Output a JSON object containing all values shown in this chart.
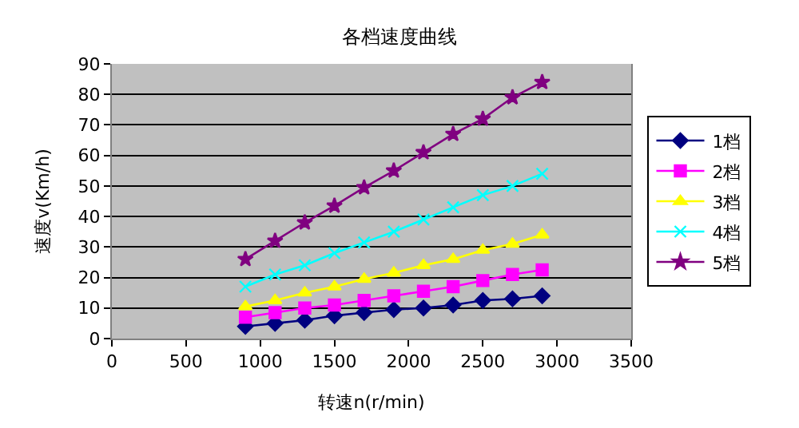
{
  "chart_data": {
    "type": "line",
    "title": "各档速度曲线",
    "xlabel": "转速n(r/min)",
    "ylabel": "速度v(Km/h)",
    "x": [
      900,
      1100,
      1300,
      1500,
      1700,
      1900,
      2100,
      2300,
      2500,
      2700,
      2900
    ],
    "xlim": [
      0,
      3500
    ],
    "xticks": [
      0,
      500,
      1000,
      1500,
      2000,
      2500,
      3000,
      3500
    ],
    "ylim": [
      0,
      90
    ],
    "yticks": [
      0,
      10,
      20,
      30,
      40,
      50,
      60,
      70,
      80,
      90
    ],
    "grid": "y",
    "legend": "right",
    "series": [
      {
        "name": "1档",
        "color": "#000080",
        "marker": "diamond",
        "values": [
          4,
          5,
          6,
          7.5,
          8.5,
          9.5,
          10,
          11,
          12.5,
          13,
          14
        ]
      },
      {
        "name": "2档",
        "color": "#ff00ff",
        "marker": "square",
        "values": [
          7,
          8.5,
          10,
          11,
          12.5,
          14,
          15.5,
          17,
          19,
          21,
          22.5
        ]
      },
      {
        "name": "3档",
        "color": "#ffff00",
        "marker": "triangle",
        "values": [
          10.5,
          12.5,
          15,
          17,
          19.5,
          21.5,
          24,
          26,
          29,
          31,
          34
        ]
      },
      {
        "name": "4档",
        "color": "#00ffff",
        "marker": "cross",
        "values": [
          17,
          21,
          24,
          28,
          31.5,
          35,
          39,
          43,
          47,
          50,
          54
        ]
      },
      {
        "name": "5档",
        "color": "#800080",
        "marker": "star",
        "values": [
          26,
          32,
          38,
          43.5,
          49.5,
          55,
          61,
          67,
          72,
          79,
          84
        ]
      }
    ]
  }
}
